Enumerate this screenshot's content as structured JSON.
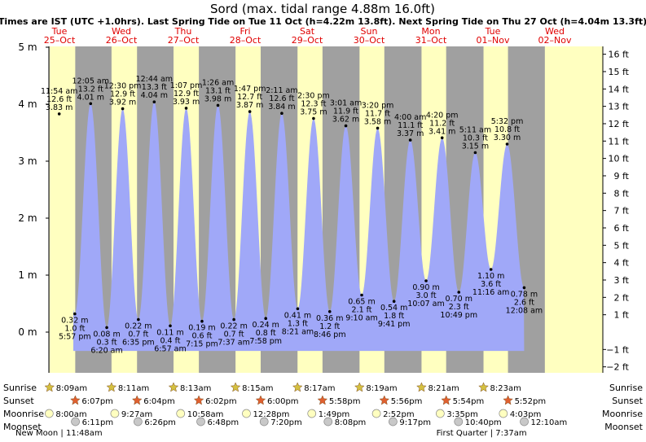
{
  "chart_data": {
    "type": "area",
    "title": "Sord (max. tidal range 4.88m 16.0ft)",
    "subtitle": "Times are IST (UTC +1.0hrs). Last Spring Tide on Tue 11 Oct (h=4.22m 13.8ft). Next Spring Tide on Thu 27 Oct (h=4.04m 13.3ft)",
    "ylim_m": [
      -0.55,
      5.0
    ],
    "left_axis": {
      "ticks": [
        0,
        1,
        2,
        3,
        4,
        5
      ],
      "labels": [
        "0 m",
        "1 m",
        "2 m",
        "3 m",
        "4 m",
        "5 m"
      ]
    },
    "right_axis": {
      "ticks": [
        -2,
        -1,
        1,
        2,
        3,
        4,
        5,
        6,
        7,
        8,
        9,
        10,
        11,
        12,
        13,
        14,
        15,
        16
      ],
      "labels": [
        "−2 ft",
        "−1 ft",
        "1 ft",
        "2 ft",
        "3 ft",
        "4 ft",
        "5 ft",
        "6 ft",
        "7 ft",
        "8 ft",
        "9 ft",
        "10 ft",
        "11 ft",
        "12 ft",
        "13 ft",
        "14 ft",
        "15 ft",
        "16 ft"
      ]
    },
    "days": [
      {
        "day": "Tue",
        "date": "25–Oct",
        "sunrise": "8:09am",
        "sunset": "6:07pm",
        "moonrise": "8:00am",
        "moonset": "6:11pm"
      },
      {
        "day": "Wed",
        "date": "26–Oct",
        "sunrise": "8:11am",
        "sunset": "6:04pm",
        "moonrise": "9:27am",
        "moonset": "6:26pm"
      },
      {
        "day": "Thu",
        "date": "27–Oct",
        "sunrise": "8:13am",
        "sunset": "6:02pm",
        "moonrise": "10:58am",
        "moonset": "6:48pm"
      },
      {
        "day": "Fri",
        "date": "28–Oct",
        "sunrise": "8:15am",
        "sunset": "6:00pm",
        "moonrise": "12:28pm",
        "moonset": "7:20pm"
      },
      {
        "day": "Sat",
        "date": "29–Oct",
        "sunrise": "8:17am",
        "sunset": "5:58pm",
        "moonrise": "1:49pm",
        "moonset": "8:08pm"
      },
      {
        "day": "Sun",
        "date": "30–Oct",
        "sunrise": "8:19am",
        "sunset": "5:56pm",
        "moonrise": "2:52pm",
        "moonset": "9:17pm"
      },
      {
        "day": "Mon",
        "date": "31–Oct",
        "sunrise": "8:21am",
        "sunset": "5:54pm",
        "moonrise": "3:35pm",
        "moonset": "10:40pm"
      },
      {
        "day": "Tue",
        "date": "01–Nov",
        "sunrise": "8:23am",
        "sunset": "5:52pm",
        "moonrise": "4:03pm",
        "moonset": "12:10am"
      },
      {
        "day": "Wed",
        "date": "02–Nov"
      }
    ],
    "tides": [
      {
        "type": "high",
        "day": 0,
        "time": "11:54 am",
        "h": 3.83,
        "ft": "12.6 ft",
        "m": "3.83 m"
      },
      {
        "type": "low",
        "day": 0,
        "time": "5:57 pm",
        "h": 0.32,
        "ft": "1.0 ft",
        "m": "0.32 m"
      },
      {
        "type": "high",
        "day": 1,
        "time": "12:05 am",
        "h": 4.01,
        "ft": "13.2 ft",
        "m": "4.01 m"
      },
      {
        "type": "low",
        "day": 1,
        "time": "6:20 am",
        "h": 0.08,
        "ft": "0.3 ft",
        "m": "0.08 m"
      },
      {
        "type": "high",
        "day": 1,
        "time": "12:30 pm",
        "h": 3.92,
        "ft": "12.9 ft",
        "m": "3.92 m"
      },
      {
        "type": "low",
        "day": 1,
        "time": "6:35 pm",
        "h": 0.22,
        "ft": "0.7 ft",
        "m": "0.22 m"
      },
      {
        "type": "high",
        "day": 2,
        "time": "12:44 am",
        "h": 4.04,
        "ft": "13.3 ft",
        "m": "4.04 m"
      },
      {
        "type": "low",
        "day": 2,
        "time": "6:57 am",
        "h": 0.11,
        "ft": "0.4 ft",
        "m": "0.11 m"
      },
      {
        "type": "high",
        "day": 2,
        "time": "1:07 pm",
        "h": 3.93,
        "ft": "12.9 ft",
        "m": "3.93 m"
      },
      {
        "type": "low",
        "day": 2,
        "time": "7:15 pm",
        "h": 0.19,
        "ft": "0.6 ft",
        "m": "0.19 m"
      },
      {
        "type": "high",
        "day": 3,
        "time": "1:26 am",
        "h": 3.98,
        "ft": "13.1 ft",
        "m": "3.98 m"
      },
      {
        "type": "low",
        "day": 3,
        "time": "7:37 am",
        "h": 0.22,
        "ft": "0.7 ft",
        "m": "0.22 m"
      },
      {
        "type": "high",
        "day": 3,
        "time": "1:47 pm",
        "h": 3.87,
        "ft": "12.7 ft",
        "m": "3.87 m"
      },
      {
        "type": "low",
        "day": 3,
        "time": "7:58 pm",
        "h": 0.24,
        "ft": "0.8 ft",
        "m": "0.24 m"
      },
      {
        "type": "high",
        "day": 4,
        "time": "2:11 am",
        "h": 3.84,
        "ft": "12.6 ft",
        "m": "3.84 m"
      },
      {
        "type": "low",
        "day": 4,
        "time": "8:21 am",
        "h": 0.41,
        "ft": "1.3 ft",
        "m": "0.41 m"
      },
      {
        "type": "high",
        "day": 4,
        "time": "2:30 pm",
        "h": 3.75,
        "ft": "12.3 ft",
        "m": "3.75 m"
      },
      {
        "type": "low",
        "day": 4,
        "time": "8:46 pm",
        "h": 0.36,
        "ft": "1.2 ft",
        "m": "0.36 m"
      },
      {
        "type": "high",
        "day": 5,
        "time": "3:01 am",
        "h": 3.62,
        "ft": "11.9 ft",
        "m": "3.62 m"
      },
      {
        "type": "low",
        "day": 5,
        "time": "9:10 am",
        "h": 0.65,
        "ft": "2.1 ft",
        "m": "0.65 m"
      },
      {
        "type": "high",
        "day": 5,
        "time": "3:20 pm",
        "h": 3.58,
        "ft": "11.7 ft",
        "m": "3.58 m"
      },
      {
        "type": "low",
        "day": 5,
        "time": "9:41 pm",
        "h": 0.54,
        "ft": "1.8 ft",
        "m": "0.54 m"
      },
      {
        "type": "high",
        "day": 6,
        "time": "4:00 am",
        "h": 3.37,
        "ft": "11.1 ft",
        "m": "3.37 m"
      },
      {
        "type": "low",
        "day": 6,
        "time": "10:07 am",
        "h": 0.9,
        "ft": "3.0 ft",
        "m": "0.90 m"
      },
      {
        "type": "high",
        "day": 6,
        "time": "4:20 pm",
        "h": 3.41,
        "ft": "11.2 ft",
        "m": "3.41 m"
      },
      {
        "type": "low",
        "day": 6,
        "time": "10:49 pm",
        "h": 0.7,
        "ft": "2.3 ft",
        "m": "0.70 m"
      },
      {
        "type": "high",
        "day": 7,
        "time": "5:11 am",
        "h": 3.15,
        "ft": "10.3 ft",
        "m": "3.15 m"
      },
      {
        "type": "low",
        "day": 7,
        "time": "11:16 am",
        "h": 1.1,
        "ft": "3.6 ft",
        "m": "1.10 m"
      },
      {
        "type": "high",
        "day": 7,
        "time": "5:32 pm",
        "h": 3.3,
        "ft": "10.8 ft",
        "m": "3.30 m"
      },
      {
        "type": "low",
        "day": 8,
        "time": "12:08 am",
        "h": 0.78,
        "ft": "2.6 ft",
        "m": "0.78 m"
      }
    ],
    "moon_phases": [
      {
        "label": "New Moon | 11:48am",
        "day": 0,
        "time": "11:48am"
      },
      {
        "label": "First Quarter | 7:37am",
        "day": 7,
        "time": "7:37am"
      }
    ],
    "row_labels": {
      "sunrise": "Sunrise",
      "sunset": "Sunset",
      "moonrise": "Moonrise",
      "moonset": "Moonset"
    }
  },
  "colors": {
    "night": "#a0a0a0",
    "day": "#ffffc0",
    "water": "#a0a8f8",
    "date_red": "#e00000",
    "sun_yellow": "#d4c040",
    "sun_red": "#e06030",
    "moonrise_fill": "#ffffc0",
    "moonset_fill": "#c8c8c8"
  }
}
